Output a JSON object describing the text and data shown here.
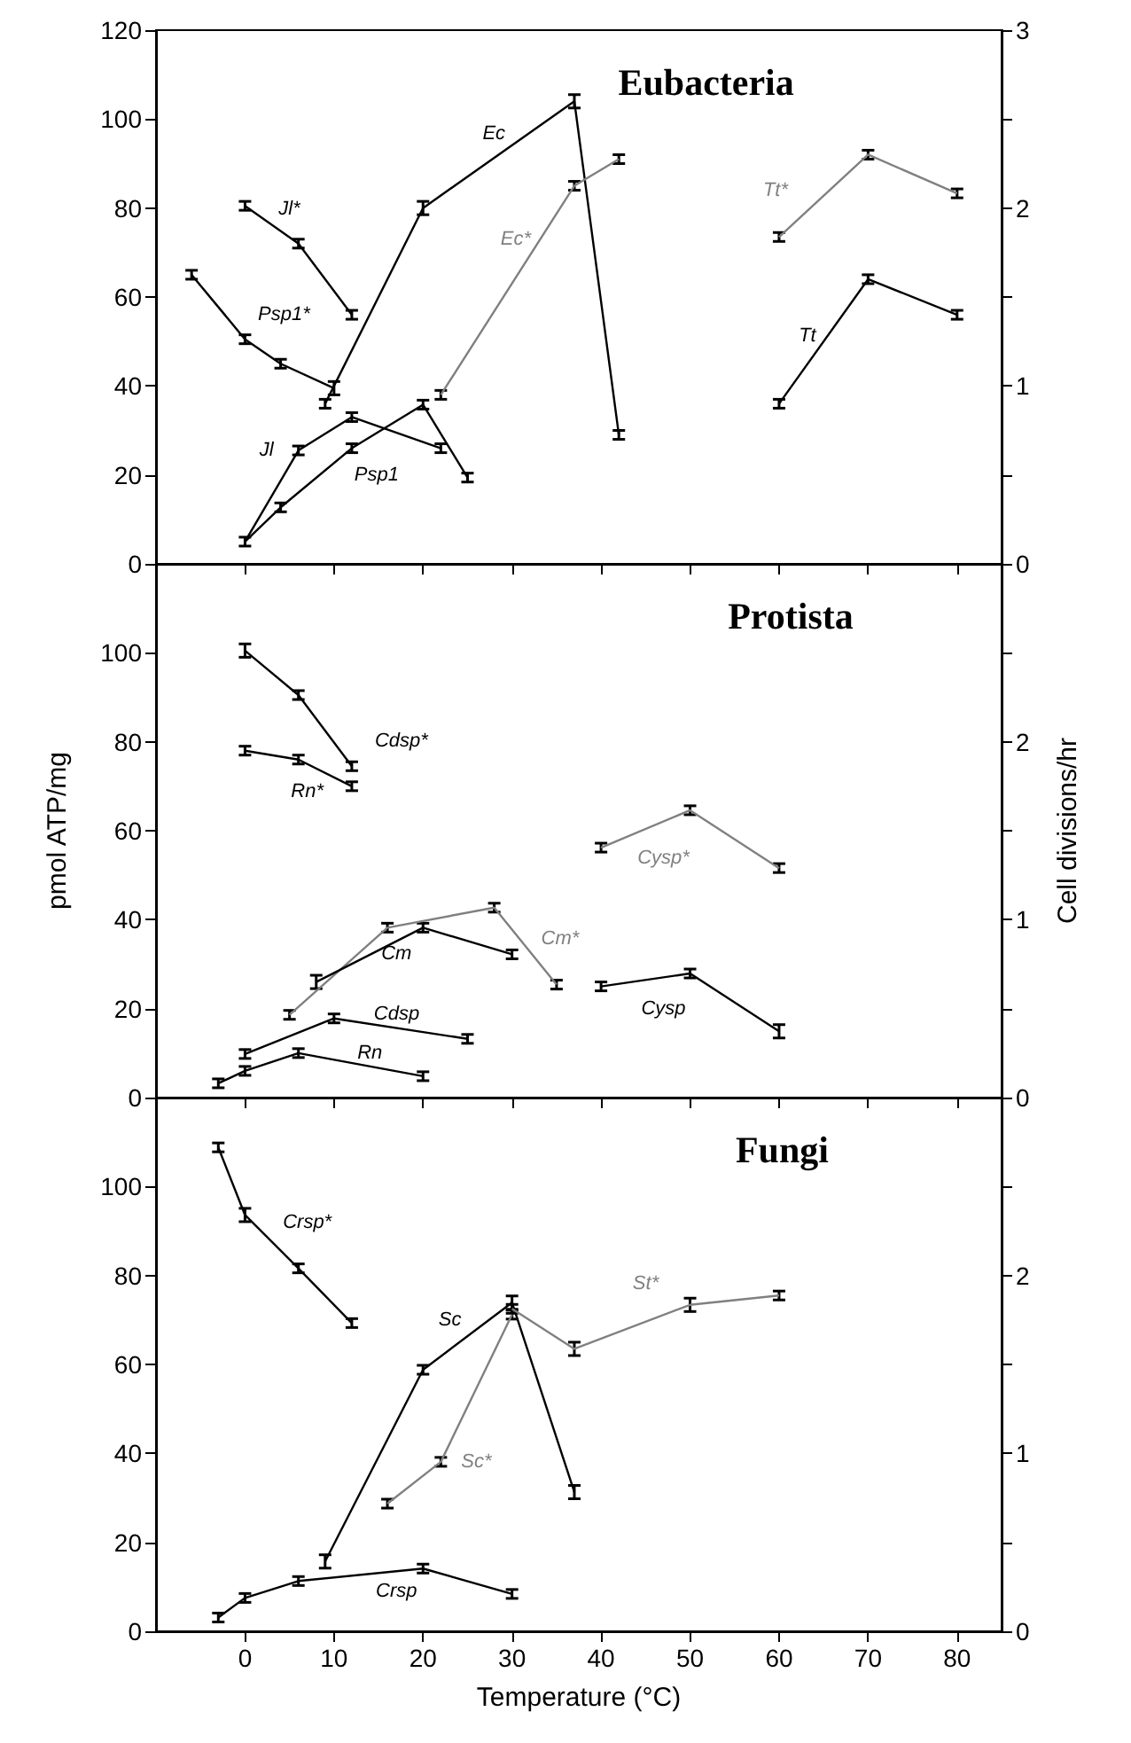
{
  "chart_data": [
    {
      "type": "line",
      "title": "Eubacteria",
      "marker": "none",
      "tick_labels": "y",
      "xlim": [
        -10,
        85
      ],
      "xticks": [
        0,
        10,
        20,
        30,
        40,
        50,
        60,
        70,
        80
      ],
      "ylim": [
        0,
        120
      ],
      "yticks": [
        0,
        20,
        40,
        60,
        80,
        100,
        120
      ],
      "y2lim": [
        0,
        3
      ],
      "y2ticks": [
        0,
        {
          "value": 0.5,
          "label": null
        },
        1,
        {
          "value": 1.5,
          "label": null
        },
        2,
        {
          "value": 2.5,
          "label": null
        },
        3
      ],
      "series": [
        {
          "name": "Jl*",
          "color": "#000000",
          "x": [
            0,
            6,
            12
          ],
          "values": [
            80.5,
            72,
            56
          ],
          "errors": [
            1,
            1,
            1
          ]
        },
        {
          "name": "Psp1*",
          "color": "#000000",
          "x": [
            -6,
            0,
            4,
            10
          ],
          "values": [
            65,
            50.5,
            45,
            39.5
          ],
          "errors": [
            1,
            1,
            1,
            1.5
          ]
        },
        {
          "name": "Ec",
          "color": "#000000",
          "x": [
            9,
            20,
            37,
            42
          ],
          "values": [
            36,
            80,
            104,
            29
          ],
          "errors": [
            1,
            1.5,
            1.5,
            1
          ]
        },
        {
          "name": "Ec*",
          "color": "#808080",
          "x": [
            22,
            37,
            42
          ],
          "values": [
            38,
            85,
            91
          ],
          "errors": [
            1,
            1,
            1
          ]
        },
        {
          "name": "Jl",
          "color": "#000000",
          "x": [
            0,
            6,
            12,
            22
          ],
          "values": [
            5,
            25.5,
            33,
            26
          ],
          "errors": [
            1,
            1,
            1,
            1
          ]
        },
        {
          "name": "Psp1",
          "color": "#000000",
          "x": [
            0,
            4,
            12,
            20,
            25
          ],
          "values": [
            5,
            12.7,
            26,
            35.8,
            19.4
          ],
          "errors": [
            null,
            1,
            1,
            1,
            1
          ]
        },
        {
          "name": "Tt*",
          "color": "#808080",
          "x": [
            60,
            70,
            80
          ],
          "values": [
            73.5,
            92,
            83.3
          ],
          "errors": [
            1,
            1,
            1
          ]
        },
        {
          "name": "Tt",
          "color": "#000000",
          "x": [
            60,
            70,
            80
          ],
          "values": [
            36,
            64,
            56
          ],
          "errors": [
            1,
            1,
            1
          ]
        }
      ]
    },
    {
      "type": "line",
      "title": "Protista",
      "ylabel": "pmol ATP/mg",
      "y2label": "Cell divisions/hr",
      "marker": "none",
      "tick_labels": "y",
      "xlim": [
        -10,
        85
      ],
      "xticks": [
        0,
        10,
        20,
        30,
        40,
        50,
        60,
        70,
        80
      ],
      "ylim": [
        0,
        120
      ],
      "yticks": [
        0,
        20,
        40,
        60,
        80,
        100,
        {
          "value": 120,
          "label": null
        }
      ],
      "y2lim": [
        0,
        3
      ],
      "y2ticks": [
        0,
        {
          "value": 0.5,
          "label": null
        },
        1,
        {
          "value": 1.5,
          "label": null
        },
        2,
        {
          "value": 2.5,
          "label": null
        },
        {
          "value": 3,
          "label": null
        }
      ],
      "series": [
        {
          "name": "Cdsp*",
          "color": "#000000",
          "x": [
            0,
            6,
            12
          ],
          "values": [
            100.5,
            90.5,
            74.5
          ],
          "errors": [
            1.5,
            1,
            1
          ]
        },
        {
          "name": "Rn*",
          "color": "#000000",
          "x": [
            0,
            6,
            12
          ],
          "values": [
            78,
            76,
            70
          ],
          "errors": [
            1,
            1,
            1
          ]
        },
        {
          "name": "Cm*",
          "color": "#808080",
          "x": [
            5,
            16,
            28,
            35
          ],
          "values": [
            18.6,
            38.2,
            42.7,
            25.4
          ],
          "errors": [
            1,
            1,
            1,
            1
          ]
        },
        {
          "name": "Cm",
          "color": "#000000",
          "x": [
            8,
            20,
            30
          ],
          "values": [
            26,
            38.2,
            32.2
          ],
          "errors": [
            1.5,
            1,
            1
          ]
        },
        {
          "name": "Cdsp",
          "color": "#000000",
          "x": [
            0,
            10,
            25
          ],
          "values": [
            9.8,
            17.8,
            13.2
          ],
          "errors": [
            1,
            1,
            1
          ]
        },
        {
          "name": "Rn",
          "color": "#000000",
          "x": [
            -3,
            0,
            6,
            20
          ],
          "values": [
            3.2,
            6,
            10,
            4.8
          ],
          "errors": [
            1,
            1,
            1,
            1
          ]
        },
        {
          "name": "Cysp*",
          "color": "#808080",
          "x": [
            40,
            50,
            60
          ],
          "values": [
            56.2,
            64.6,
            51.6
          ],
          "errors": [
            1,
            1,
            1
          ]
        },
        {
          "name": "Cysp",
          "color": "#000000",
          "x": [
            40,
            50,
            60
          ],
          "values": [
            25,
            27.9,
            14.9
          ],
          "errors": [
            1,
            1,
            1.5
          ]
        }
      ]
    },
    {
      "type": "line",
      "title": "Fungi",
      "xlabel": "Temperature (°C)",
      "marker": "none",
      "xlim": [
        -10,
        85
      ],
      "xticks": [
        0,
        10,
        20,
        30,
        40,
        50,
        60,
        70,
        80
      ],
      "ylim": [
        0,
        120
      ],
      "yticks": [
        0,
        20,
        40,
        60,
        80,
        100,
        {
          "value": 120,
          "label": null
        }
      ],
      "y2lim": [
        0,
        3
      ],
      "y2ticks": [
        0,
        {
          "value": 0.5,
          "label": null
        },
        1,
        {
          "value": 1.5,
          "label": null
        },
        2,
        {
          "value": 2.5,
          "label": null
        },
        {
          "value": 3,
          "label": null
        }
      ],
      "series": [
        {
          "name": "Crsp*",
          "color": "#000000",
          "x": [
            -3,
            0,
            6,
            12
          ],
          "values": [
            108.8,
            93.6,
            81.6,
            69.3
          ],
          "errors": [
            1,
            1.5,
            1,
            1
          ]
        },
        {
          "name": "Crsp",
          "color": "#000000",
          "x": [
            -3,
            0,
            6,
            20,
            30
          ],
          "values": [
            3.1,
            7.5,
            11.3,
            14.1,
            8.4
          ],
          "errors": [
            1,
            1,
            1,
            1,
            1
          ]
        },
        {
          "name": "Sc",
          "color": "#000000",
          "x": [
            9,
            20,
            30,
            37
          ],
          "values": [
            15.7,
            58.8,
            73.9,
            31.3
          ],
          "errors": [
            1.5,
            1,
            1.5,
            1.5
          ]
        },
        {
          "name": "Sc*",
          "color": "#808080",
          "x": [
            16,
            22,
            30
          ],
          "values": [
            28.7,
            38.1,
            71.2
          ],
          "errors": [
            1,
            1,
            1
          ]
        },
        {
          "name": "St*",
          "color": "#808080",
          "x": [
            30,
            37,
            50,
            60
          ],
          "values": [
            72.5,
            63.5,
            73.4,
            75.5
          ],
          "errors": [
            1,
            1.5,
            1.5,
            1
          ]
        }
      ]
    }
  ]
}
